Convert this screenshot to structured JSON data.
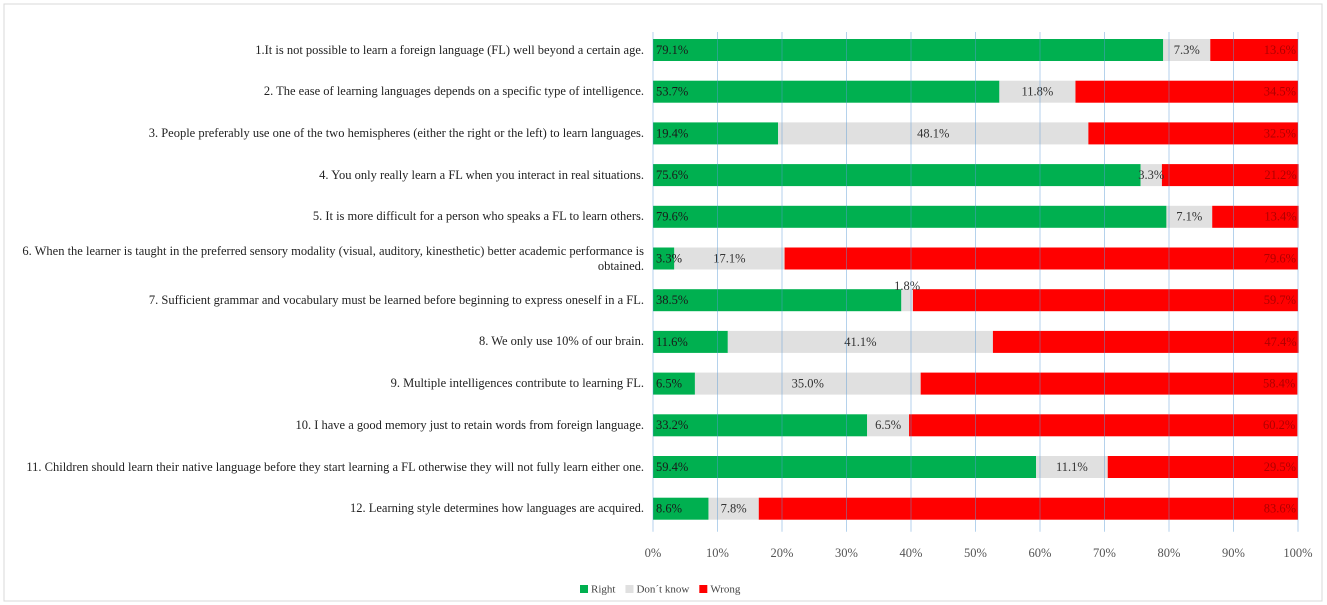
{
  "chart_data": {
    "type": "stacked_barh",
    "categories": [
      "1.It is not possible to learn a foreign language (FL) well beyond a certain age.",
      "2. The ease of learning languages depends on a specific type of intelligence.",
      "3. People preferably use one of the two hemispheres (either the right or the left) to learn languages.",
      "4. You only really learn a FL when you interact in real situations.",
      "5. It is more difficult for a person who speaks a FL to learn others.",
      "6. When the learner is taught in the preferred sensory modality (visual, auditory, kinesthetic) better academic performance is obtained.",
      "7. Sufficient grammar and vocabulary must be learned before beginning to express oneself in a FL.",
      "8. We only use 10% of our brain.",
      "9. Multiple intelligences contribute to learning FL.",
      "10. I have a good memory just to retain words from foreign language.",
      "11. Children should learn their native language before they start learning a FL otherwise they will not fully learn either one.",
      "12. Learning style determines how languages are acquired."
    ],
    "series": [
      {
        "name": "Right",
        "color": "#00b050",
        "values": [
          79.1,
          53.7,
          19.4,
          75.6,
          79.6,
          3.3,
          38.5,
          11.6,
          6.5,
          33.2,
          59.4,
          8.6
        ],
        "value_labels": [
          "79.1%",
          "53.7%",
          "19.4%",
          "75.6%",
          "79.6%",
          "3.3%",
          "38.5%",
          "11.6%",
          "6.5%",
          "33.2%",
          "59.4%",
          "8.6%"
        ]
      },
      {
        "name": "Don´t know",
        "color": "#e0e0e0",
        "values": [
          7.3,
          11.8,
          48.1,
          3.3,
          7.1,
          17.1,
          1.8,
          41.1,
          35.0,
          6.5,
          11.1,
          7.8
        ],
        "value_labels": [
          "7.3%",
          "11.8%",
          "48.1%",
          "3.3%",
          "7.1%",
          "17.1%",
          "1.8%",
          "41.1%",
          "35.0%",
          "6.5%",
          "11.1%",
          "7.8%"
        ]
      },
      {
        "name": "Wrong",
        "color": "#ff0000",
        "values": [
          13.6,
          34.5,
          32.5,
          21.2,
          13.4,
          79.6,
          59.7,
          47.4,
          58.4,
          60.2,
          29.5,
          83.6
        ],
        "value_labels": [
          "13.6%",
          "34.5%",
          "32.5%",
          "21.2%",
          "13.4%",
          "79.6%",
          "59.7%",
          "47.4%",
          "58.4%",
          "60.2%",
          "29.5%",
          "83.6%"
        ]
      }
    ],
    "xlim": [
      0,
      100
    ],
    "xticks": [
      {
        "value": 0,
        "label": "0%"
      },
      {
        "value": 10,
        "label": "10%"
      },
      {
        "value": 20,
        "label": "20%"
      },
      {
        "value": 30,
        "label": "30%"
      },
      {
        "value": 40,
        "label": "40%"
      },
      {
        "value": 50,
        "label": "50%"
      },
      {
        "value": 60,
        "label": "60%"
      },
      {
        "value": 70,
        "label": "70%"
      },
      {
        "value": 80,
        "label": "80%"
      },
      {
        "value": 90,
        "label": "90%"
      },
      {
        "value": 100,
        "label": "100%"
      }
    ],
    "grid": true,
    "legend": "bottom"
  }
}
